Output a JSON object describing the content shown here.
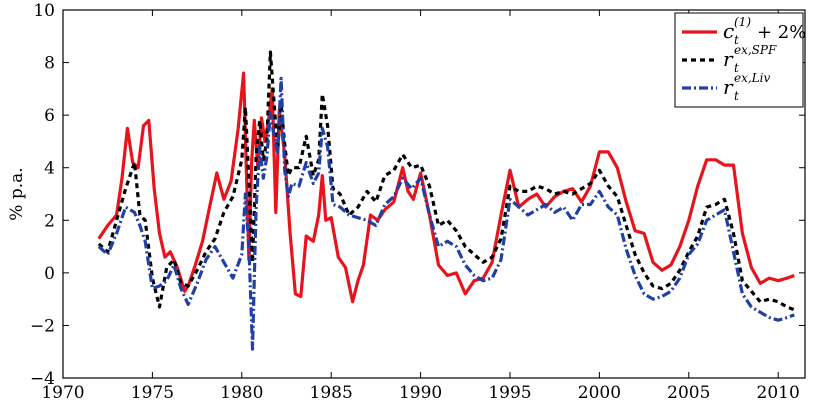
{
  "chart_data": {
    "type": "line",
    "title": "",
    "xlabel": "",
    "ylabel": "% p.a.",
    "xlim": [
      1970,
      2011.5
    ],
    "ylim": [
      -4,
      10
    ],
    "xticks": [
      1970,
      1975,
      1980,
      1985,
      1990,
      1995,
      2000,
      2005,
      2010
    ],
    "yticks": [
      -4,
      -2,
      0,
      2,
      4,
      6,
      8,
      10
    ],
    "grid": false,
    "legend_position": "top-right",
    "legend": [
      {
        "base": "c",
        "sub": "t",
        "sup": "(1)",
        "suffix": " + 2%"
      },
      {
        "base": "r",
        "sub": "t",
        "sup": "ex,SPF",
        "suffix": ""
      },
      {
        "base": "r",
        "sub": "t",
        "sup": "ex,Liv",
        "suffix": ""
      }
    ],
    "series": [
      {
        "name": "c_t^(1) + 2%",
        "color": "#e8141c",
        "dash": "solid",
        "x": [
          1972.0,
          1972.5,
          1973.0,
          1973.3,
          1973.6,
          1973.9,
          1974.2,
          1974.5,
          1974.8,
          1975.1,
          1975.4,
          1975.7,
          1976.0,
          1976.4,
          1976.8,
          1977.0,
          1977.4,
          1977.8,
          1978.2,
          1978.6,
          1979.0,
          1979.4,
          1979.8,
          1980.1,
          1980.25,
          1980.4,
          1980.55,
          1980.7,
          1980.9,
          1981.1,
          1981.3,
          1981.5,
          1981.7,
          1981.9,
          1982.1,
          1982.4,
          1982.7,
          1983.0,
          1983.3,
          1983.6,
          1984.0,
          1984.3,
          1984.5,
          1984.7,
          1985.0,
          1985.4,
          1985.8,
          1986.2,
          1986.5,
          1986.8,
          1987.2,
          1987.6,
          1988.0,
          1988.5,
          1989.0,
          1989.3,
          1989.6,
          1990.0,
          1990.5,
          1991.0,
          1991.5,
          1992.0,
          1992.5,
          1993.0,
          1993.5,
          1994.0,
          1994.5,
          1995.0,
          1995.5,
          1996.0,
          1996.5,
          1997.0,
          1997.5,
          1998.0,
          1998.5,
          1999.0,
          1999.5,
          2000.0,
          2000.5,
          2001.0,
          2001.5,
          2002.0,
          2002.5,
          2003.0,
          2003.5,
          2004.0,
          2004.5,
          2005.0,
          2005.5,
          2006.0,
          2006.5,
          2007.0,
          2007.5,
          2008.0,
          2008.5,
          2009.0,
          2009.5,
          2010.0,
          2010.5,
          2010.9
        ],
        "y": [
          1.3,
          1.8,
          2.2,
          3.6,
          5.5,
          4.2,
          4.0,
          5.6,
          5.8,
          3.2,
          1.5,
          0.6,
          0.8,
          0.2,
          -0.7,
          -0.5,
          0.3,
          1.2,
          2.5,
          3.8,
          2.8,
          3.5,
          5.5,
          7.6,
          4.0,
          0.5,
          4.2,
          5.8,
          4.0,
          5.9,
          5.0,
          5.8,
          7.0,
          2.3,
          6.2,
          4.5,
          1.5,
          -0.8,
          -0.9,
          1.4,
          1.2,
          2.2,
          3.7,
          2.0,
          2.1,
          0.6,
          0.2,
          -1.1,
          -0.3,
          0.3,
          2.2,
          2.0,
          2.4,
          2.7,
          4.0,
          3.1,
          2.8,
          3.8,
          2.2,
          0.3,
          -0.1,
          0.0,
          -0.8,
          -0.3,
          -0.2,
          0.4,
          2.2,
          3.9,
          2.5,
          2.8,
          3.0,
          2.5,
          2.9,
          3.1,
          3.2,
          2.7,
          3.3,
          4.6,
          4.6,
          4.0,
          2.7,
          1.6,
          1.5,
          0.4,
          0.1,
          0.3,
          1.0,
          2.0,
          3.3,
          4.3,
          4.3,
          4.1,
          4.1,
          1.5,
          0.2,
          -0.4,
          -0.2,
          -0.3,
          -0.2,
          -0.1
        ]
      },
      {
        "name": "r_t^ex,SPF",
        "color": "#000000",
        "dash": "dashed",
        "x": [
          1972.0,
          1972.5,
          1973.0,
          1973.5,
          1974.0,
          1974.3,
          1974.6,
          1975.0,
          1975.4,
          1975.8,
          1976.2,
          1976.6,
          1977.0,
          1977.5,
          1978.0,
          1978.5,
          1979.0,
          1979.5,
          1980.0,
          1980.2,
          1980.4,
          1980.6,
          1980.8,
          1981.0,
          1981.2,
          1981.4,
          1981.6,
          1981.8,
          1982.0,
          1982.2,
          1982.4,
          1982.6,
          1982.8,
          1983.2,
          1983.6,
          1984.0,
          1984.3,
          1984.5,
          1984.8,
          1985.1,
          1985.5,
          1986.0,
          1986.5,
          1987.0,
          1987.5,
          1988.0,
          1988.5,
          1989.0,
          1989.5,
          1990.0,
          1990.5,
          1991.0,
          1991.5,
          1992.0,
          1992.5,
          1993.0,
          1993.5,
          1994.0,
          1994.5,
          1995.0,
          1995.5,
          1996.0,
          1996.5,
          1997.0,
          1997.5,
          1998.0,
          1998.5,
          1999.0,
          1999.5,
          2000.0,
          2000.5,
          2001.0,
          2001.5,
          2002.0,
          2002.5,
          2003.0,
          2003.5,
          2004.0,
          2004.5,
          2005.0,
          2005.5,
          2006.0,
          2006.5,
          2007.0,
          2007.5,
          2008.0,
          2008.5,
          2009.0,
          2009.5,
          2010.0,
          2010.5,
          2010.9
        ],
        "y": [
          1.1,
          0.8,
          2.0,
          3.2,
          4.2,
          2.2,
          2.0,
          -0.2,
          -1.3,
          0.2,
          0.5,
          -0.4,
          -0.5,
          0.1,
          0.8,
          1.3,
          2.3,
          2.9,
          4.3,
          6.3,
          3.5,
          0.4,
          4.4,
          5.8,
          4.3,
          5.0,
          8.4,
          6.5,
          4.7,
          6.4,
          4.9,
          3.7,
          4.0,
          4.0,
          5.2,
          3.7,
          4.3,
          6.8,
          5.6,
          3.2,
          3.0,
          2.2,
          2.5,
          3.1,
          2.7,
          3.7,
          3.9,
          4.5,
          4.0,
          4.1,
          3.3,
          1.8,
          2.0,
          1.6,
          1.0,
          0.7,
          0.4,
          0.6,
          1.3,
          3.3,
          3.1,
          3.1,
          3.3,
          3.2,
          3.0,
          3.1,
          3.0,
          3.2,
          3.4,
          3.9,
          3.3,
          2.9,
          1.8,
          0.7,
          0.0,
          -0.5,
          -0.6,
          -0.4,
          0.1,
          0.8,
          1.4,
          2.5,
          2.6,
          2.8,
          1.5,
          -0.3,
          -0.7,
          -1.1,
          -1.0,
          -1.1,
          -1.3,
          -1.4
        ]
      },
      {
        "name": "r_t^ex,Liv",
        "color": "#2040a8",
        "dash": "dashdot",
        "x": [
          1972.0,
          1972.5,
          1973.0,
          1973.5,
          1974.0,
          1974.3,
          1974.6,
          1975.0,
          1975.4,
          1975.8,
          1976.2,
          1976.6,
          1977.0,
          1977.5,
          1978.0,
          1978.5,
          1979.0,
          1979.5,
          1980.0,
          1980.2,
          1980.4,
          1980.6,
          1980.8,
          1981.0,
          1981.2,
          1981.4,
          1981.6,
          1981.8,
          1982.0,
          1982.2,
          1982.4,
          1982.6,
          1982.8,
          1983.2,
          1983.6,
          1984.0,
          1984.3,
          1984.5,
          1984.8,
          1985.1,
          1985.5,
          1986.0,
          1986.5,
          1987.0,
          1987.5,
          1988.0,
          1988.5,
          1989.0,
          1989.5,
          1990.0,
          1990.5,
          1991.0,
          1991.5,
          1992.0,
          1992.5,
          1993.0,
          1993.5,
          1994.0,
          1994.5,
          1995.0,
          1995.5,
          1996.0,
          1996.5,
          1997.0,
          1997.5,
          1998.0,
          1998.5,
          1999.0,
          1999.5,
          2000.0,
          2000.5,
          2001.0,
          2001.5,
          2002.0,
          2002.5,
          2003.0,
          2003.5,
          2004.0,
          2004.5,
          2005.0,
          2005.5,
          2006.0,
          2006.5,
          2007.0,
          2007.5,
          2008.0,
          2008.5,
          2009.0,
          2009.5,
          2010.0,
          2010.5,
          2010.9
        ],
        "y": [
          1.0,
          0.7,
          1.5,
          2.5,
          2.3,
          1.8,
          1.2,
          -0.6,
          -0.5,
          -0.3,
          0.3,
          -0.6,
          -1.2,
          -0.4,
          0.5,
          1.0,
          0.4,
          -0.2,
          0.7,
          3.0,
          1.0,
          -2.9,
          2.5,
          4.8,
          3.6,
          4.4,
          6.1,
          5.2,
          4.6,
          7.4,
          3.9,
          2.9,
          3.4,
          3.3,
          4.2,
          3.4,
          3.8,
          5.5,
          4.8,
          2.6,
          2.5,
          2.2,
          2.1,
          2.0,
          1.8,
          2.6,
          2.9,
          3.6,
          3.2,
          3.6,
          2.2,
          1.0,
          1.2,
          1.0,
          0.3,
          -0.1,
          -0.3,
          -0.2,
          0.5,
          2.8,
          2.5,
          2.2,
          2.4,
          2.6,
          2.3,
          2.5,
          2.0,
          2.6,
          2.6,
          3.1,
          2.5,
          2.2,
          0.9,
          -0.1,
          -0.8,
          -1.0,
          -0.9,
          -0.7,
          -0.2,
          0.7,
          1.1,
          2.0,
          2.2,
          2.4,
          0.8,
          -0.8,
          -1.3,
          -1.5,
          -1.7,
          -1.8,
          -1.7,
          -1.6
        ]
      }
    ]
  }
}
